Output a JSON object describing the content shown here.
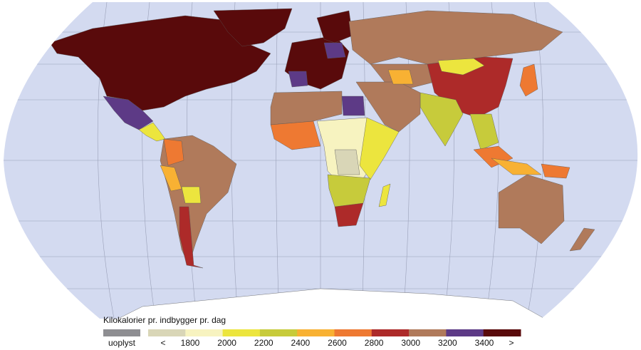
{
  "legend": {
    "title": "Kilokalorier pr. indbygger pr. dag",
    "missing": {
      "label": "uoplyst",
      "color": "#8e8e92"
    },
    "colors": [
      "#d9d6b7",
      "#f7f3c0",
      "#ece53e",
      "#c7cb3b",
      "#f8b133",
      "#ee7932",
      "#ad2a29",
      "#b07a5b",
      "#5d3a86",
      "#590a0b"
    ],
    "labels": [
      "<",
      "1800",
      "2000",
      "2200",
      "2400",
      "2600",
      "2800",
      "3000",
      "3200",
      "3400",
      ">"
    ]
  }
}
